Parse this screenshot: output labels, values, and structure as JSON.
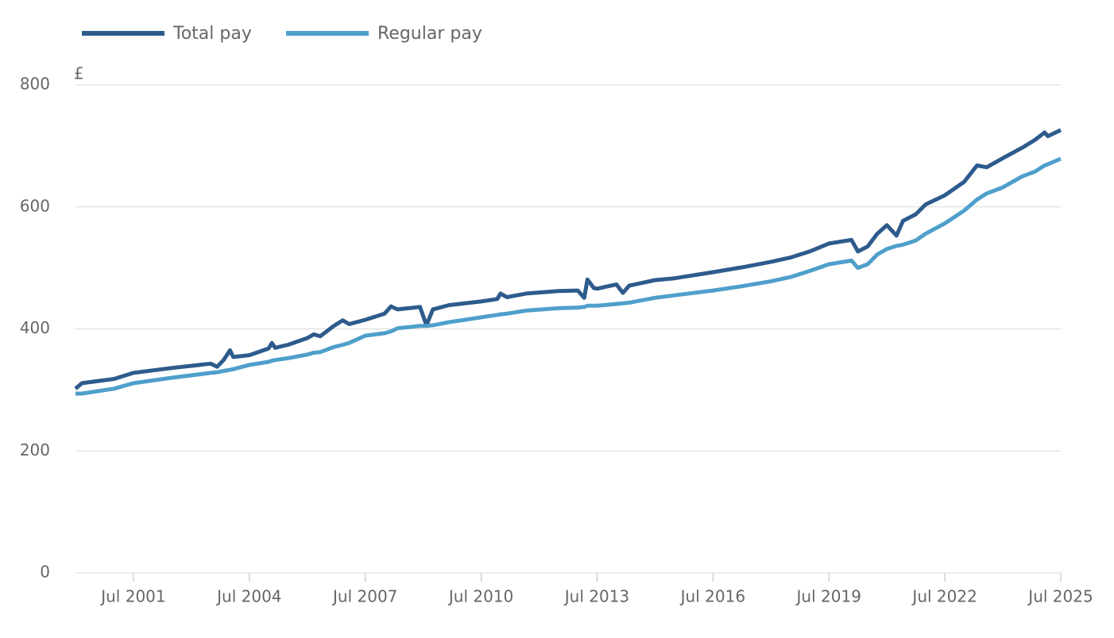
{
  "chart_data": {
    "type": "line",
    "ylabel": "£",
    "legend": "top-left",
    "grid": true,
    "x": [
      "2000-01",
      "2000-03",
      "2001-01",
      "2001-07",
      "2002-07",
      "2003-07",
      "2003-09",
      "2003-11",
      "2004-01",
      "2004-02",
      "2004-07",
      "2005-01",
      "2005-02",
      "2005-03",
      "2005-07",
      "2006-01",
      "2006-03",
      "2006-05",
      "2006-09",
      "2006-12",
      "2007-02",
      "2007-07",
      "2008-01",
      "2008-03",
      "2008-05",
      "2008-12",
      "2009-02",
      "2009-04",
      "2009-09",
      "2010-07",
      "2010-12",
      "2011-01",
      "2011-03",
      "2011-09",
      "2012-07",
      "2013-01",
      "2013-03",
      "2013-04",
      "2013-06",
      "2013-07",
      "2014-01",
      "2014-03",
      "2014-05",
      "2015-01",
      "2015-07",
      "2016-07",
      "2017-04",
      "2018-01",
      "2018-07",
      "2019-01",
      "2019-07",
      "2020-02",
      "2020-04",
      "2020-07",
      "2020-10",
      "2021-01",
      "2021-04",
      "2021-06",
      "2021-10",
      "2022-01",
      "2022-07",
      "2023-01",
      "2023-05",
      "2023-08",
      "2024-01",
      "2024-07",
      "2024-11",
      "2025-02",
      "2025-03",
      "2025-07"
    ],
    "series": [
      {
        "name": "Total pay",
        "color": "#2d5b8c",
        "values": [
          302,
          311,
          318,
          328,
          336,
          343,
          338,
          349,
          365,
          354,
          357,
          368,
          377,
          369,
          374,
          385,
          391,
          388,
          404,
          414,
          408,
          415,
          425,
          437,
          432,
          436,
          406,
          432,
          439,
          445,
          449,
          458,
          452,
          458,
          462,
          463,
          451,
          481,
          467,
          466,
          473,
          459,
          471,
          480,
          483,
          493,
          501,
          510,
          517,
          527,
          540,
          546,
          527,
          535,
          556,
          570,
          553,
          577,
          588,
          604,
          619,
          641,
          668,
          665,
          680,
          697,
          710,
          722,
          716,
          726
        ]
      },
      {
        "name": "Regular pay",
        "color": "#4f9fcb",
        "values": [
          294,
          294,
          302,
          311,
          320,
          328,
          329,
          331,
          333,
          334,
          341,
          346,
          348,
          349,
          352,
          358,
          361,
          362,
          370,
          374,
          377,
          389,
          393,
          396,
          401,
          405,
          405,
          406,
          411,
          419,
          423,
          424,
          425,
          430,
          434,
          435,
          436,
          438,
          438,
          438,
          441,
          442,
          443,
          451,
          455,
          463,
          470,
          478,
          485,
          495,
          506,
          512,
          500,
          506,
          522,
          531,
          536,
          538,
          545,
          556,
          573,
          594,
          612,
          622,
          632,
          650,
          658,
          668,
          670,
          679
        ]
      }
    ],
    "xlim": [
      "2000-01",
      "2025-07"
    ],
    "xticks": [
      {
        "value": "2001-07",
        "label": "Jul 2001"
      },
      {
        "value": "2004-07",
        "label": "Jul 2004"
      },
      {
        "value": "2007-07",
        "label": "Jul 2007"
      },
      {
        "value": "2010-07",
        "label": "Jul 2010"
      },
      {
        "value": "2013-07",
        "label": "Jul 2013"
      },
      {
        "value": "2016-07",
        "label": "Jul 2016"
      },
      {
        "value": "2019-07",
        "label": "Jul 2019"
      },
      {
        "value": "2022-07",
        "label": "Jul 2022"
      },
      {
        "value": "2025-07",
        "label": "Jul 2025"
      }
    ],
    "ylim": [
      0,
      800
    ],
    "yticks": [
      0,
      200,
      400,
      600,
      800
    ]
  }
}
